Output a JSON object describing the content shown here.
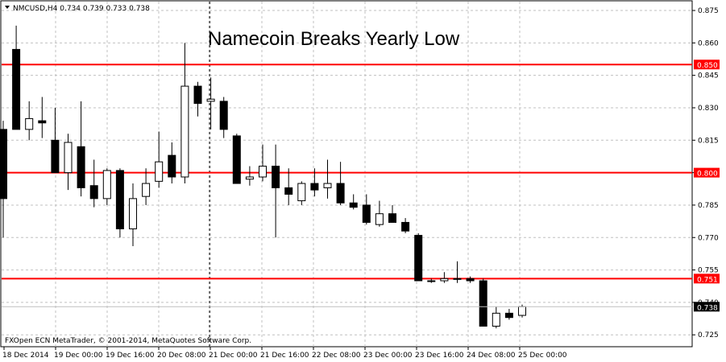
{
  "header": {
    "symbol_info": "NMCUSD,H4  0.734 0.739 0.733 0.738",
    "copyright": "FXOpen ECN MetaTrader, © 2001-2014, MetaQuotes Software Corp."
  },
  "chart_data": {
    "type": "candlestick",
    "title": "Namecoin Breaks Yearly Low",
    "ylim": [
      0.7195,
      0.8791
    ],
    "y_ticks": [
      "0.875",
      "0.860",
      "0.845",
      "0.830",
      "0.815",
      "0.800",
      "0.785",
      "0.770",
      "0.755",
      "0.740",
      "0.725"
    ],
    "x_ticks": [
      "18 Dec 2014",
      "19 Dec 00:00",
      "19 Dec 16:00",
      "20 Dec 08:00",
      "21 Dec 00:00",
      "21 Dec 16:00",
      "22 Dec 08:00",
      "23 Dec 00:00",
      "23 Dec 16:00",
      "24 Dec 08:00",
      "25 Dec 00:00"
    ],
    "horizontal_levels": [
      {
        "label": "0.850",
        "value": 0.85,
        "color": "#ff0000"
      },
      {
        "label": "0.800",
        "value": 0.8,
        "color": "#ff0000"
      },
      {
        "label": "0.751",
        "value": 0.751,
        "color": "#ff0000"
      }
    ],
    "current_price": {
      "label": "0.738",
      "value": 0.738
    },
    "grid": true,
    "candles": [
      {
        "o": 0.82,
        "h": 0.824,
        "l": 0.77,
        "c": 0.788
      },
      {
        "o": 0.857,
        "h": 0.868,
        "l": 0.82,
        "c": 0.82
      },
      {
        "o": 0.82,
        "h": 0.833,
        "l": 0.815,
        "c": 0.825
      },
      {
        "o": 0.824,
        "h": 0.835,
        "l": 0.816,
        "c": 0.823
      },
      {
        "o": 0.815,
        "h": 0.83,
        "l": 0.8,
        "c": 0.8
      },
      {
        "o": 0.8,
        "h": 0.818,
        "l": 0.792,
        "c": 0.814
      },
      {
        "o": 0.812,
        "h": 0.833,
        "l": 0.789,
        "c": 0.793
      },
      {
        "o": 0.794,
        "h": 0.806,
        "l": 0.784,
        "c": 0.788
      },
      {
        "o": 0.788,
        "h": 0.802,
        "l": 0.785,
        "c": 0.801
      },
      {
        "o": 0.801,
        "h": 0.802,
        "l": 0.77,
        "c": 0.774
      },
      {
        "o": 0.774,
        "h": 0.795,
        "l": 0.766,
        "c": 0.788
      },
      {
        "o": 0.789,
        "h": 0.802,
        "l": 0.785,
        "c": 0.795
      },
      {
        "o": 0.796,
        "h": 0.819,
        "l": 0.793,
        "c": 0.805
      },
      {
        "o": 0.808,
        "h": 0.814,
        "l": 0.795,
        "c": 0.798
      },
      {
        "o": 0.798,
        "h": 0.86,
        "l": 0.795,
        "c": 0.84
      },
      {
        "o": 0.84,
        "h": 0.842,
        "l": 0.826,
        "c": 0.832
      },
      {
        "o": 0.833,
        "h": 0.844,
        "l": 0.82,
        "c": 0.834
      },
      {
        "o": 0.833,
        "h": 0.835,
        "l": 0.816,
        "c": 0.82
      },
      {
        "o": 0.817,
        "h": 0.818,
        "l": 0.795,
        "c": 0.795
      },
      {
        "o": 0.797,
        "h": 0.803,
        "l": 0.794,
        "c": 0.798
      },
      {
        "o": 0.798,
        "h": 0.813,
        "l": 0.796,
        "c": 0.803
      },
      {
        "o": 0.803,
        "h": 0.813,
        "l": 0.77,
        "c": 0.793
      },
      {
        "o": 0.793,
        "h": 0.802,
        "l": 0.785,
        "c": 0.79
      },
      {
        "o": 0.787,
        "h": 0.796,
        "l": 0.785,
        "c": 0.795
      },
      {
        "o": 0.795,
        "h": 0.802,
        "l": 0.789,
        "c": 0.792
      },
      {
        "o": 0.793,
        "h": 0.806,
        "l": 0.788,
        "c": 0.795
      },
      {
        "o": 0.795,
        "h": 0.805,
        "l": 0.785,
        "c": 0.786
      },
      {
        "o": 0.786,
        "h": 0.79,
        "l": 0.783,
        "c": 0.784
      },
      {
        "o": 0.785,
        "h": 0.79,
        "l": 0.776,
        "c": 0.777
      },
      {
        "o": 0.776,
        "h": 0.787,
        "l": 0.775,
        "c": 0.781
      },
      {
        "o": 0.781,
        "h": 0.785,
        "l": 0.777,
        "c": 0.777
      },
      {
        "o": 0.777,
        "h": 0.779,
        "l": 0.772,
        "c": 0.773
      },
      {
        "o": 0.771,
        "h": 0.772,
        "l": 0.75,
        "c": 0.75
      },
      {
        "o": 0.75,
        "h": 0.751,
        "l": 0.749,
        "c": 0.75
      },
      {
        "o": 0.75,
        "h": 0.754,
        "l": 0.749,
        "c": 0.751
      },
      {
        "o": 0.751,
        "h": 0.759,
        "l": 0.749,
        "c": 0.751
      },
      {
        "o": 0.751,
        "h": 0.752,
        "l": 0.749,
        "c": 0.75
      },
      {
        "o": 0.75,
        "h": 0.751,
        "l": 0.729,
        "c": 0.729
      },
      {
        "o": 0.729,
        "h": 0.738,
        "l": 0.728,
        "c": 0.735
      },
      {
        "o": 0.735,
        "h": 0.737,
        "l": 0.732,
        "c": 0.733
      },
      {
        "o": 0.734,
        "h": 0.739,
        "l": 0.733,
        "c": 0.738
      }
    ]
  }
}
